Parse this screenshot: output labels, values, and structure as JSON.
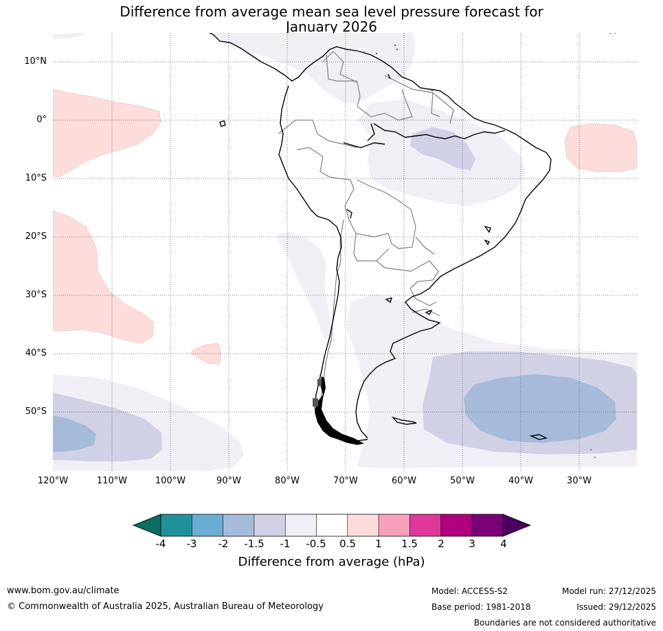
{
  "title": {
    "line1": "Difference from average mean sea level pressure forecast for",
    "line2": "January 2026"
  },
  "map": {
    "lat_labels": [
      "10°N",
      "0°",
      "10°S",
      "20°S",
      "30°S",
      "40°S",
      "50°S"
    ],
    "lon_labels": [
      "120°W",
      "110°W",
      "100°W",
      "90°W",
      "80°W",
      "70°W",
      "60°W",
      "50°W",
      "40°W",
      "30°W"
    ]
  },
  "colorbar": {
    "title": "Difference from average (hPa)",
    "tick_labels": [
      "-4",
      "-3",
      "-2",
      "-1.5",
      "-1",
      "-0.5",
      "0.5",
      "1",
      "1.5",
      "2",
      "3",
      "4"
    ],
    "colors": {
      "below_min": "#0b6e5e",
      "c1": "#1e9199",
      "c2": "#6aaed4",
      "c3": "#a6bad9",
      "c4": "#d1d1e5",
      "c5": "#f2eef5",
      "c6": "#ffffff",
      "c7": "#fddcdc",
      "c8": "#f6a0b9",
      "c9": "#df389a",
      "c10": "#b0007f",
      "c11": "#7b0078",
      "above_max": "#4a0060"
    }
  },
  "footer": {
    "url": "www.bom.gov.au/climate",
    "copyright": "© Commonwealth of Australia 2025, Australian Bureau of Meteorology",
    "model": "Model: ACCESS-S2",
    "base_period": "Base period: 1981-2018",
    "model_run": "Model run: 27/12/2025",
    "issued": "Issued: 29/12/2025",
    "disclaimer": "Boundaries are not considered authoritative"
  }
}
